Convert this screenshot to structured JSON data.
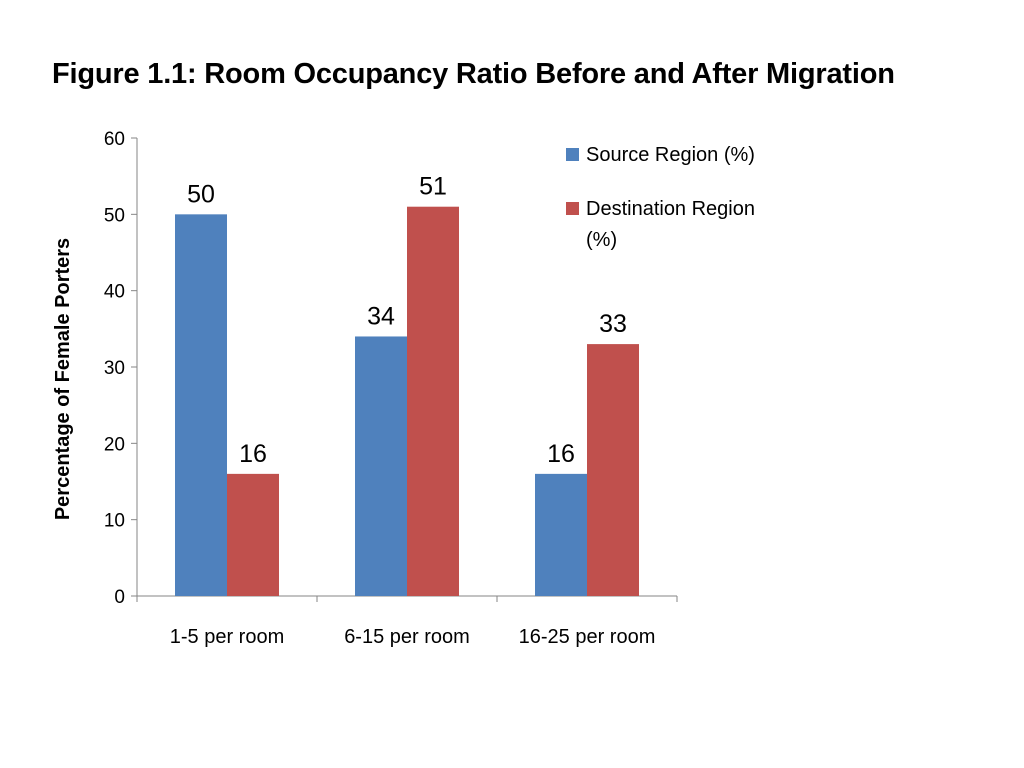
{
  "chart_data": {
    "type": "bar",
    "title": "Figure 1.1: Room Occupancy Ratio Before and After Migration",
    "ylabel": "Percentage of Female Porters",
    "xlabel": "",
    "categories": [
      "1-5 per room",
      "6-15 per room",
      "16-25 per room"
    ],
    "series": [
      {
        "name": "Source Region (%)",
        "name_lines": [
          "Source Region (%)"
        ],
        "values": [
          50,
          34,
          16
        ],
        "color": "#4F81BD"
      },
      {
        "name": "Destination Region (%)",
        "name_lines": [
          "Destination Region",
          "(%)"
        ],
        "values": [
          16,
          51,
          33
        ],
        "color": "#C0504D"
      }
    ],
    "ylim": [
      0,
      60
    ],
    "yticks": [
      0,
      10,
      20,
      30,
      40,
      50,
      60
    ],
    "grid": false,
    "legend": "right",
    "data_labels": true
  }
}
